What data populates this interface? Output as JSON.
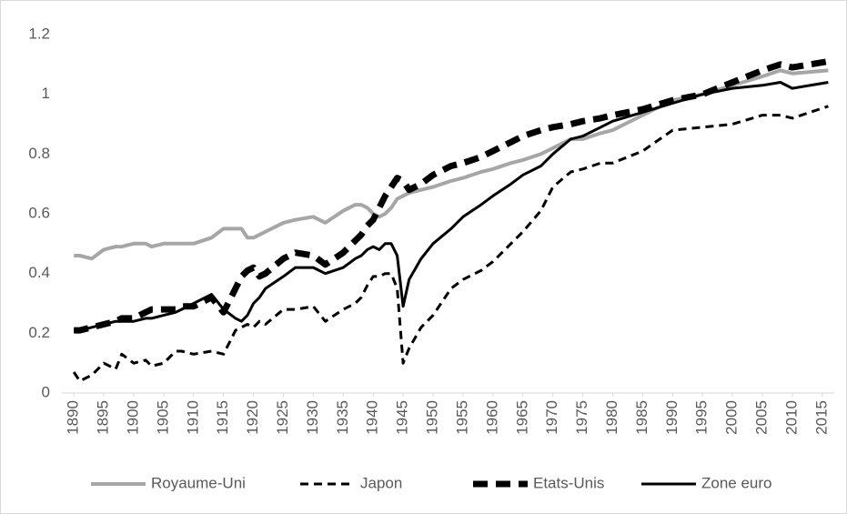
{
  "chart_data": {
    "type": "line",
    "x": [
      1890,
      1891,
      1893,
      1895,
      1897,
      1898,
      1900,
      1902,
      1903,
      1905,
      1907,
      1908,
      1910,
      1913,
      1915,
      1917,
      1918,
      1919,
      1920,
      1921,
      1922,
      1925,
      1927,
      1930,
      1932,
      1935,
      1937,
      1938,
      1939,
      1940,
      1941,
      1942,
      1943,
      1944,
      1945,
      1946,
      1948,
      1950,
      1953,
      1955,
      1958,
      1960,
      1963,
      1965,
      1968,
      1970,
      1973,
      1975,
      1978,
      1980,
      1985,
      1990,
      1995,
      2000,
      2005,
      2008,
      2010,
      2016
    ],
    "series": [
      {
        "name": "Royaume-Uni",
        "color": "#a6a6a6",
        "style": "solid",
        "values": [
          0.46,
          0.46,
          0.45,
          0.48,
          0.49,
          0.49,
          0.5,
          0.5,
          0.49,
          0.5,
          0.5,
          0.5,
          0.5,
          0.52,
          0.55,
          0.55,
          0.55,
          0.52,
          0.52,
          0.53,
          0.54,
          0.57,
          0.58,
          0.59,
          0.57,
          0.61,
          0.63,
          0.63,
          0.62,
          0.6,
          0.59,
          0.6,
          0.62,
          0.65,
          0.66,
          0.67,
          0.68,
          0.69,
          0.71,
          0.72,
          0.74,
          0.75,
          0.77,
          0.78,
          0.8,
          0.82,
          0.85,
          0.85,
          0.87,
          0.88,
          0.93,
          0.98,
          1.0,
          1.03,
          1.06,
          1.08,
          1.07,
          1.08
        ]
      },
      {
        "name": "Japon",
        "color": "#000000",
        "style": "dashed",
        "values": [
          0.07,
          0.04,
          0.06,
          0.1,
          0.08,
          0.13,
          0.1,
          0.11,
          0.09,
          0.1,
          0.14,
          0.14,
          0.13,
          0.14,
          0.13,
          0.21,
          0.22,
          0.23,
          0.22,
          0.24,
          0.23,
          0.28,
          0.28,
          0.29,
          0.24,
          0.28,
          0.3,
          0.32,
          0.36,
          0.39,
          0.39,
          0.4,
          0.4,
          0.35,
          0.1,
          0.15,
          0.22,
          0.26,
          0.35,
          0.38,
          0.41,
          0.44,
          0.5,
          0.54,
          0.61,
          0.69,
          0.74,
          0.75,
          0.77,
          0.77,
          0.81,
          0.88,
          0.89,
          0.9,
          0.93,
          0.93,
          0.92,
          0.96
        ]
      },
      {
        "name": "Etats-Unis",
        "color": "#000000",
        "style": "long-dashed",
        "values": [
          0.21,
          0.21,
          0.22,
          0.23,
          0.24,
          0.25,
          0.25,
          0.27,
          0.28,
          0.28,
          0.28,
          0.29,
          0.29,
          0.32,
          0.27,
          0.35,
          0.39,
          0.41,
          0.42,
          0.39,
          0.4,
          0.45,
          0.47,
          0.46,
          0.43,
          0.47,
          0.51,
          0.53,
          0.56,
          0.58,
          0.62,
          0.66,
          0.69,
          0.72,
          0.71,
          0.68,
          0.7,
          0.73,
          0.76,
          0.77,
          0.79,
          0.81,
          0.84,
          0.86,
          0.88,
          0.89,
          0.9,
          0.91,
          0.92,
          0.93,
          0.95,
          0.98,
          1.0,
          1.04,
          1.08,
          1.1,
          1.09,
          1.11
        ]
      },
      {
        "name": "Zone euro",
        "color": "#000000",
        "style": "solid",
        "values": [
          0.21,
          0.21,
          0.22,
          0.23,
          0.24,
          0.24,
          0.24,
          0.25,
          0.25,
          0.26,
          0.27,
          0.28,
          0.3,
          0.33,
          0.28,
          0.25,
          0.24,
          0.26,
          0.3,
          0.32,
          0.35,
          0.39,
          0.42,
          0.42,
          0.4,
          0.42,
          0.45,
          0.46,
          0.48,
          0.49,
          0.48,
          0.5,
          0.5,
          0.46,
          0.29,
          0.38,
          0.45,
          0.5,
          0.55,
          0.59,
          0.63,
          0.66,
          0.7,
          0.73,
          0.76,
          0.8,
          0.85,
          0.86,
          0.89,
          0.91,
          0.94,
          0.97,
          1.0,
          1.02,
          1.03,
          1.04,
          1.02,
          1.04
        ]
      }
    ],
    "xlim": [
      1888,
      2017
    ],
    "xticks": [
      1890,
      1895,
      1900,
      1905,
      1910,
      1915,
      1920,
      1925,
      1930,
      1935,
      1940,
      1945,
      1950,
      1955,
      1960,
      1965,
      1970,
      1975,
      1980,
      1985,
      1990,
      1995,
      2000,
      2005,
      2010,
      2015
    ],
    "ylim": [
      0,
      1.2
    ],
    "yticks": [
      0,
      0.2,
      0.4,
      0.6,
      0.8,
      1,
      1.2
    ],
    "grid": false,
    "legend": "bottom"
  }
}
